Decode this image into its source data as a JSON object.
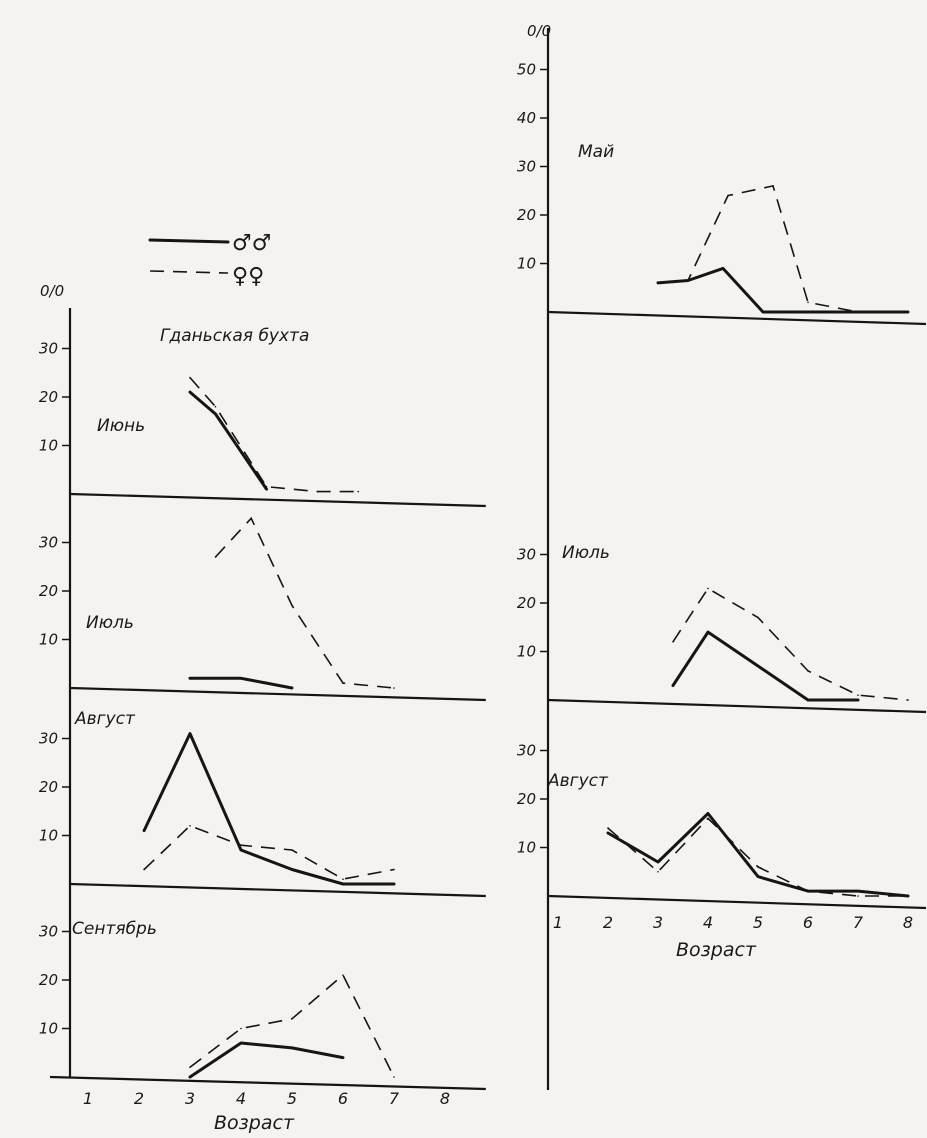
{
  "legend": {
    "male": "♂♂",
    "female": "♀♀"
  },
  "colors": {
    "line": "#151515",
    "paper": "#f4f3ef"
  },
  "chart_data": [
    {
      "type": "line",
      "title": "Гданьская бухта",
      "xlabel": "Возраст",
      "ylabel": "0/0",
      "x_ticks": [
        "1",
        "2",
        "3",
        "4",
        "5",
        "6",
        "7",
        "8"
      ],
      "y_ticks": [
        "10",
        "20",
        "30"
      ],
      "panels": [
        {
          "label": "Июнь",
          "ylim": [
            0,
            35
          ],
          "series": [
            {
              "name": "♂♂",
              "style": "solid",
              "points": [
                [
                  3,
                  21
                ],
                [
                  3.5,
                  16.5
                ],
                [
                  4.5,
                  1
                ]
              ]
            },
            {
              "name": "♀♀",
              "style": "dashed",
              "points": [
                [
                  3,
                  24
                ],
                [
                  3.5,
                  18
                ],
                [
                  4.5,
                  1.5
                ],
                [
                  5.5,
                  0.5
                ],
                [
                  6.3,
                  0.5
                ]
              ]
            }
          ]
        },
        {
          "label": "Июль",
          "ylim": [
            0,
            35
          ],
          "series": [
            {
              "name": "♂♂",
              "style": "solid",
              "points": [
                [
                  3,
                  2
                ],
                [
                  4,
                  2
                ],
                [
                  4.5,
                  1
                ],
                [
                  5,
                  0
                ]
              ]
            },
            {
              "name": "♀♀",
              "style": "dashed",
              "points": [
                [
                  3.5,
                  27
                ],
                [
                  4.2,
                  35
                ],
                [
                  5,
                  17
                ],
                [
                  6,
                  1
                ],
                [
                  7,
                  0
                ]
              ]
            }
          ]
        },
        {
          "label": "Август",
          "ylim": [
            0,
            35
          ],
          "series": [
            {
              "name": "♂♂",
              "style": "solid",
              "points": [
                [
                  2.1,
                  11
                ],
                [
                  3,
                  31
                ],
                [
                  4,
                  7
                ],
                [
                  5,
                  3
                ],
                [
                  6,
                  0
                ],
                [
                  7,
                  0
                ]
              ]
            },
            {
              "name": "♀♀",
              "style": "dashed",
              "points": [
                [
                  2.1,
                  3
                ],
                [
                  3,
                  12
                ],
                [
                  4,
                  8
                ],
                [
                  5,
                  7
                ],
                [
                  6,
                  1
                ],
                [
                  7,
                  3
                ]
              ]
            }
          ]
        },
        {
          "label": "Сентябрь",
          "ylim": [
            0,
            35
          ],
          "series": [
            {
              "name": "♂♂",
              "style": "solid",
              "points": [
                [
                  3,
                  0
                ],
                [
                  4,
                  7
                ],
                [
                  5,
                  6
                ],
                [
                  6,
                  4
                ]
              ]
            },
            {
              "name": "♀♀",
              "style": "dashed",
              "points": [
                [
                  3,
                  2
                ],
                [
                  4,
                  10
                ],
                [
                  5,
                  12
                ],
                [
                  6,
                  21
                ],
                [
                  7,
                  0
                ]
              ]
            }
          ]
        }
      ]
    },
    {
      "type": "line",
      "title": "",
      "xlabel": "Возраст",
      "ylabel": "0/0",
      "x_ticks": [
        "1",
        "2",
        "3",
        "4",
        "5",
        "6",
        "7",
        "8"
      ],
      "y_ticks": [
        "10",
        "20",
        "30",
        "40",
        "50"
      ],
      "panels": [
        {
          "label": "Май",
          "ylim": [
            0,
            55
          ],
          "y_ticks": [
            "10",
            "20",
            "30",
            "40",
            "50"
          ],
          "series": [
            {
              "name": "♂♂",
              "style": "solid",
              "points": [
                [
                  3,
                  6
                ],
                [
                  3.6,
                  6.5
                ],
                [
                  4.3,
                  9
                ],
                [
                  5.1,
                  0
                ],
                [
                  6,
                  0
                ],
                [
                  7,
                  0
                ],
                [
                  8,
                  0
                ]
              ]
            },
            {
              "name": "♀♀",
              "style": "dashed",
              "points": [
                [
                  3,
                  6
                ],
                [
                  3.6,
                  6.5
                ],
                [
                  4.4,
                  24
                ],
                [
                  5.3,
                  26
                ],
                [
                  6,
                  2
                ],
                [
                  7,
                  0
                ],
                [
                  8,
                  0
                ]
              ]
            }
          ]
        },
        {
          "label": "Июль",
          "ylim": [
            0,
            35
          ],
          "y_ticks": [
            "10",
            "20",
            "30"
          ],
          "series": [
            {
              "name": "♂♂",
              "style": "solid",
              "points": [
                [
                  3.3,
                  3
                ],
                [
                  4,
                  14
                ],
                [
                  5,
                  7
                ],
                [
                  6,
                  0
                ],
                [
                  7,
                  0
                ]
              ]
            },
            {
              "name": "♀♀",
              "style": "dashed",
              "points": [
                [
                  3.3,
                  12
                ],
                [
                  4,
                  23
                ],
                [
                  5,
                  17
                ],
                [
                  6,
                  6
                ],
                [
                  7,
                  1
                ],
                [
                  8,
                  0
                ]
              ]
            }
          ]
        },
        {
          "label": "Август",
          "ylim": [
            0,
            35
          ],
          "y_ticks": [
            "10",
            "20",
            "30"
          ],
          "series": [
            {
              "name": "♂♂",
              "style": "solid",
              "points": [
                [
                  2,
                  13
                ],
                [
                  3,
                  7
                ],
                [
                  4,
                  17
                ],
                [
                  5,
                  4
                ],
                [
                  6,
                  1
                ],
                [
                  7,
                  1
                ],
                [
                  8,
                  0
                ]
              ]
            },
            {
              "name": "♀♀",
              "style": "dashed",
              "points": [
                [
                  2,
                  14
                ],
                [
                  3,
                  5
                ],
                [
                  4,
                  16
                ],
                [
                  5,
                  6
                ],
                [
                  6,
                  1
                ],
                [
                  7,
                  0
                ],
                [
                  8,
                  0
                ]
              ]
            }
          ]
        }
      ]
    }
  ]
}
